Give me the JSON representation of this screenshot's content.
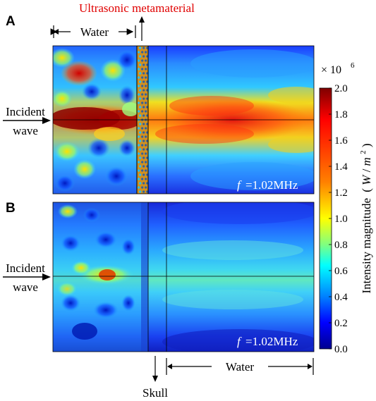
{
  "panel_a": {
    "label": "A",
    "metamaterial_label": "Ultrasonic metamaterial",
    "water_label": "Water",
    "incident_line1": "Incident",
    "incident_line2": "wave",
    "freq_label": "=1.02MHz",
    "freq_symbol": "f"
  },
  "panel_b": {
    "label": "B",
    "incident_line1": "Incident",
    "incident_line2": "wave",
    "freq_label": "=1.02MHz",
    "freq_symbol": "f",
    "skull_label": "Skull",
    "water_label": "Water"
  },
  "colorbar": {
    "multiplier": "× 10",
    "exponent": "6",
    "title": "Intensity magnitude",
    "unit_prefix": "W",
    "unit_slash": "/",
    "unit_m": "m",
    "unit_exp": "2",
    "ticks": [
      "2.0",
      "1.8",
      "1.6",
      "1.4",
      "1.2",
      "1.0",
      "0.8",
      "0.6",
      "0.4",
      "0.2",
      "0.0"
    ],
    "colors": [
      "#7f0000",
      "#ff0000",
      "#ff8000",
      "#ffff00",
      "#80ff80",
      "#00ffff",
      "#0080ff",
      "#0000ff",
      "#00008f"
    ]
  }
}
